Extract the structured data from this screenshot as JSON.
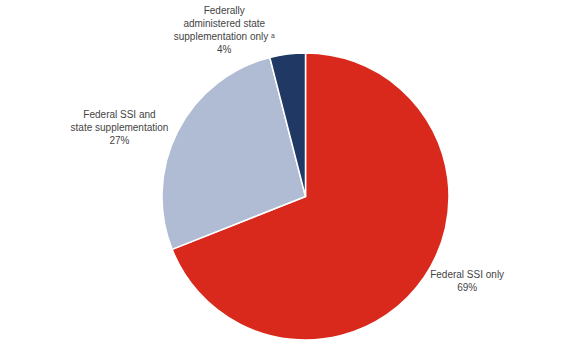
{
  "chart_data": {
    "type": "pie",
    "categories": [
      "Federal SSI only",
      "Federal SSI and\nstate supplementation",
      "Federally\nadministered state\nsupplementation only ᵃ"
    ],
    "values": [
      69,
      27,
      4
    ],
    "value_labels": [
      "69%",
      "27%",
      "4%"
    ],
    "colors": [
      "#d9291c",
      "#b0bcd4",
      "#1f3864"
    ],
    "data_labels": true,
    "legend": null
  }
}
